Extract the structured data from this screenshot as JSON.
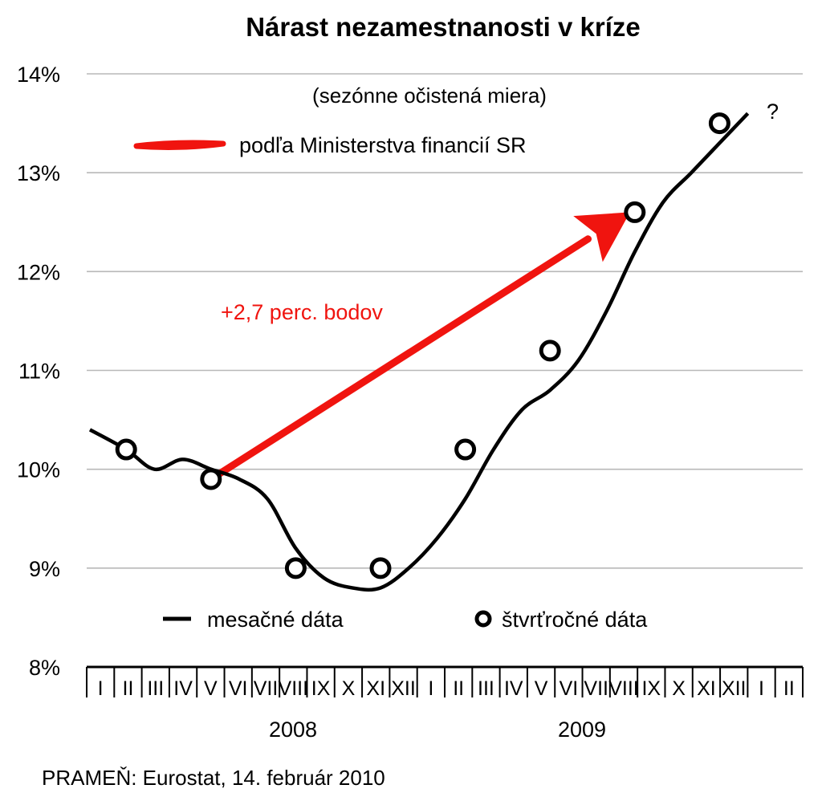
{
  "chart_data": {
    "type": "line",
    "title": "Nárast nezamestnanosti v kríze",
    "subtitle": "(sezónne očistená miera)",
    "source": "PRAMEŇ: Eurostat, 14. február 2010",
    "y_ticks": [
      "8%",
      "9%",
      "10%",
      "11%",
      "12%",
      "13%",
      "14%"
    ],
    "ylim": [
      8,
      14
    ],
    "grid": true,
    "x_ticks": [
      "I",
      "II",
      "III",
      "IV",
      "V",
      "VI",
      "VII",
      "VIII",
      "IX",
      "X",
      "XI",
      "XII",
      "I",
      "II",
      "III",
      "IV",
      "V",
      "VI",
      "VII",
      "VIII",
      "IX",
      "X",
      "XI",
      "XII",
      "I",
      "II"
    ],
    "year_labels": [
      "2008",
      "2009"
    ],
    "series": [
      {
        "name": "mesačné dáta",
        "style": "line",
        "color": "#000000",
        "x": [
          "I 2008",
          "II 2008",
          "III 2008",
          "IV 2008",
          "V 2008",
          "VI 2008",
          "VII 2008",
          "VIII 2008",
          "IX 2008",
          "X 2008",
          "XI 2008",
          "XII 2008",
          "I 2009",
          "II 2009",
          "III 2009",
          "IV 2009",
          "V 2009",
          "VI 2009",
          "VII 2009",
          "VIII 2009",
          "IX 2009",
          "X 2009",
          "XI 2009",
          "XII 2009"
        ],
        "values": [
          10.4,
          10.2,
          10.0,
          10.1,
          10.0,
          9.9,
          9.7,
          9.2,
          8.9,
          8.8,
          8.8,
          9.0,
          9.3,
          9.7,
          10.2,
          10.6,
          10.8,
          11.1,
          11.6,
          12.2,
          12.7,
          13.0,
          13.3,
          13.6
        ]
      },
      {
        "name": "štvrťročné dáta",
        "style": "markers",
        "color": "#000000",
        "x": [
          "II 2008",
          "V 2008",
          "VIII 2008",
          "XI 2008",
          "II 2009",
          "V 2009",
          "VIII 2009",
          "XI 2009"
        ],
        "values": [
          10.2,
          9.9,
          9.0,
          9.0,
          10.2,
          11.2,
          12.6,
          13.5
        ]
      }
    ],
    "annotations": [
      {
        "text": "?"
      },
      {
        "text": "+2,7 perc. bodov",
        "color": "#f0140f",
        "arrow_from": {
          "x": "V 2008",
          "y": 9.9
        },
        "arrow_to": {
          "x": "VIII 2009",
          "y": 12.6
        }
      }
    ],
    "legend_arrow": {
      "text": "podľa Ministerstva financií SR",
      "color": "#f0140f"
    },
    "legend_placement": "bottom"
  }
}
